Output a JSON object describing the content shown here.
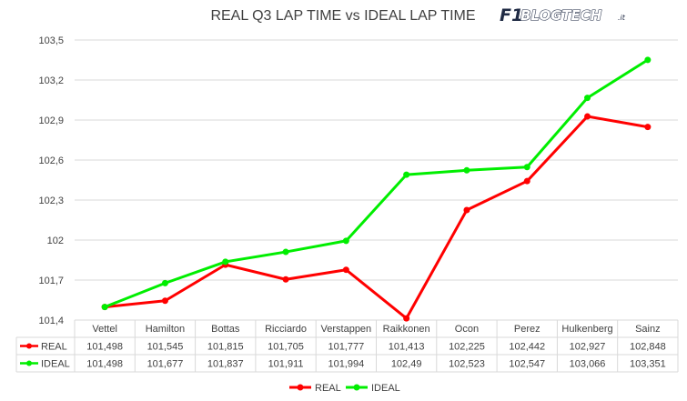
{
  "logo": {
    "f1": "F1",
    "brand": "BLOGTECH",
    "tld": ".it"
  },
  "chart_data": {
    "type": "line",
    "title": "REAL Q3 LAP TIME vs IDEAL LAP TIME",
    "categories": [
      "Vettel",
      "Hamilton",
      "Bottas",
      "Ricciardo",
      "Verstappen",
      "Raikkonen",
      "Ocon",
      "Perez",
      "Hulkenberg",
      "Sainz"
    ],
    "ylim": [
      101.4,
      103.5
    ],
    "yticks": [
      101.4,
      101.7,
      102,
      102.3,
      102.6,
      102.9,
      103.2,
      103.5
    ],
    "ytick_labels": [
      "101,4",
      "101,7",
      "102",
      "102,3",
      "102,6",
      "102,9",
      "103,2",
      "103,5"
    ],
    "grid": true,
    "legend_position": "bottom",
    "data_table": true,
    "series": [
      {
        "name": "REAL",
        "color": "#ff0000",
        "values": [
          101.498,
          101.545,
          101.815,
          101.705,
          101.777,
          101.413,
          102.225,
          102.442,
          102.927,
          102.848
        ],
        "labels": [
          "101,498",
          "101,545",
          "101,815",
          "101,705",
          "101,777",
          "101,413",
          "102,225",
          "102,442",
          "102,927",
          "102,848"
        ]
      },
      {
        "name": "IDEAL",
        "color": "#00ee00",
        "values": [
          101.498,
          101.677,
          101.837,
          101.911,
          101.994,
          102.49,
          102.523,
          102.547,
          103.066,
          103.351
        ],
        "labels": [
          "101,498",
          "101,677",
          "101,837",
          "101,911",
          "101,994",
          "102,49",
          "102,523",
          "102,547",
          "103,066",
          "103,351"
        ]
      }
    ]
  }
}
